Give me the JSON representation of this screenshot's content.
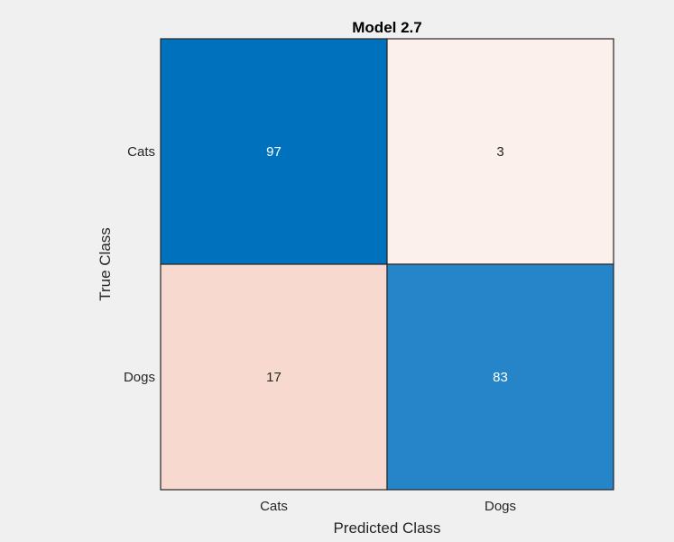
{
  "chart_data": {
    "type": "heatmap",
    "subtype": "confusion-matrix",
    "title": "Model 2.7",
    "xlabel": "Predicted Class",
    "ylabel": "True Class",
    "x_categories": [
      "Cats",
      "Dogs"
    ],
    "y_categories": [
      "Cats",
      "Dogs"
    ],
    "values": [
      [
        97,
        3
      ],
      [
        17,
        83
      ]
    ],
    "grid": false,
    "legend": "none",
    "colors": {
      "diagonal_high": "#0072bd",
      "diagonal_low": "#2585c8",
      "off_diagonal_low": "#fcf0ec",
      "off_diagonal_high": "#f7d9cf",
      "dark_text": "#262626",
      "light_text": "#ffffff",
      "background": "#f0f0f0",
      "border": "#262626"
    }
  }
}
